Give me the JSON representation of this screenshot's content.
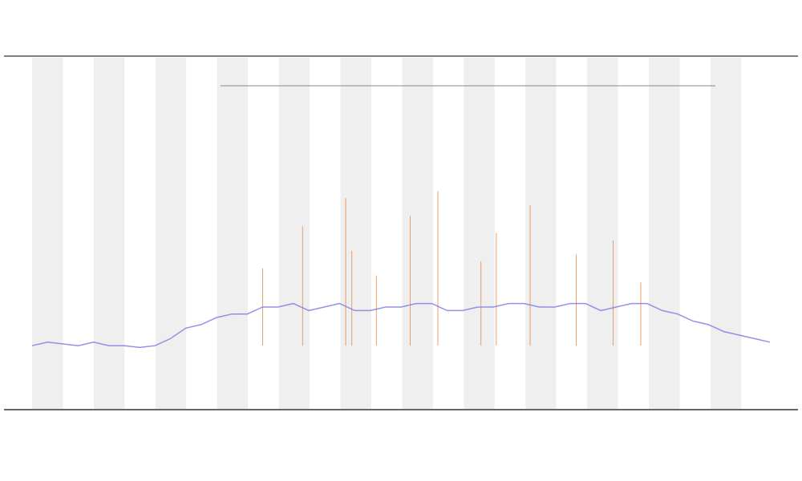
{
  "chart_data": {
    "type": "line",
    "x": [
      0,
      5,
      10,
      15,
      20,
      25,
      30,
      35,
      40,
      45,
      50,
      55,
      60,
      65,
      70,
      75,
      80,
      85,
      90,
      95,
      100,
      105,
      110,
      115,
      120,
      125,
      130,
      135,
      140,
      145,
      150,
      155,
      160,
      165,
      170,
      175,
      180,
      185,
      190,
      195,
      200,
      205,
      210,
      215,
      220,
      225,
      230,
      235,
      240
    ],
    "series": [
      {
        "color": "#7f7fe6",
        "values": [
          18,
          19,
          18.5,
          18,
          19,
          18,
          18,
          17.5,
          18,
          20,
          23,
          24,
          26,
          27,
          27,
          29,
          29,
          30,
          28,
          29,
          30,
          28,
          28,
          29,
          29,
          30,
          30,
          28,
          28,
          29,
          29,
          30,
          30,
          29,
          29,
          30,
          30,
          28,
          29,
          30,
          30,
          28,
          27,
          25,
          24,
          22,
          21,
          20,
          19
        ]
      },
      {
        "color": "#e8894a",
        "x": [
          75,
          88,
          102,
          104,
          112,
          123,
          132,
          146,
          151,
          162,
          177,
          189,
          198
        ],
        "values": [
          40,
          52,
          60,
          45,
          38,
          55,
          62,
          42,
          50,
          58,
          44,
          48,
          36
        ]
      }
    ],
    "xlim": [
      0,
      240
    ],
    "ylim": [
      0,
      100
    ]
  }
}
